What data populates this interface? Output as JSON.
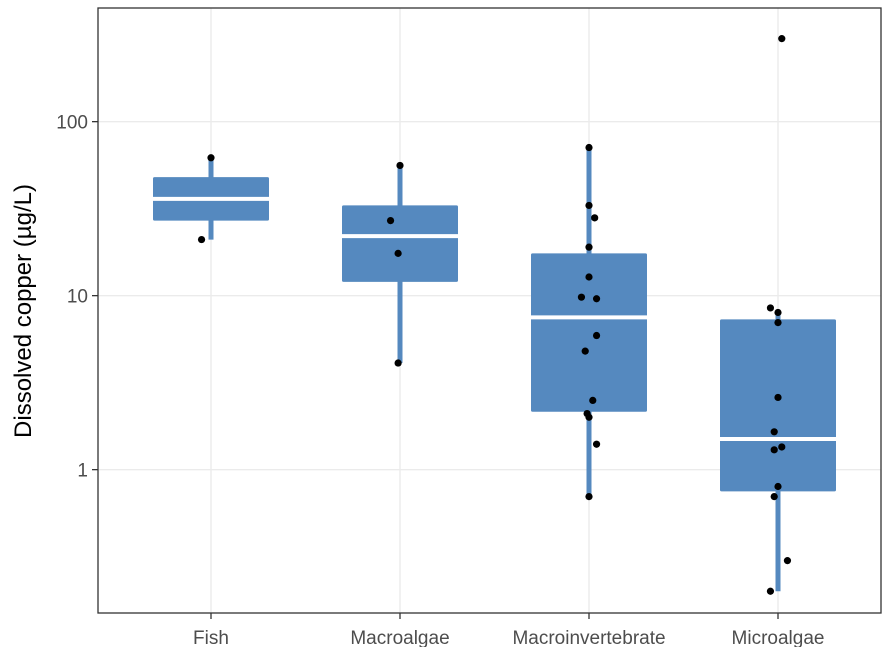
{
  "chart_data": {
    "type": "box",
    "title": "",
    "xlabel": "",
    "ylabel": "Dissolved copper (µg/L)",
    "y_scale": "log10",
    "ylim": [
      0.15,
      450
    ],
    "yticks": [
      {
        "value": 1,
        "label": "1"
      },
      {
        "value": 10,
        "label": "10"
      },
      {
        "value": 100,
        "label": "100"
      }
    ],
    "grid": true,
    "legend": "none",
    "colors": {
      "box": "#5589bf",
      "median": "#ffffff",
      "points": "#000000",
      "grid": "#ebebeb",
      "frame": "#333333"
    },
    "categories": [
      "Fish",
      "Macroalgae",
      "Macroinvertebrate",
      "Microalgae"
    ],
    "boxes": [
      {
        "category": "Fish",
        "whisker_low": 21,
        "q1": 27,
        "median": 36,
        "q3": 48,
        "whisker_high": 62
      },
      {
        "category": "Macroalgae",
        "whisker_low": 4.1,
        "q1": 12,
        "median": 22,
        "q3": 33,
        "whisker_high": 56
      },
      {
        "category": "Macroinvertebrate",
        "whisker_low": 0.7,
        "q1": 2.15,
        "median": 7.5,
        "q3": 17.5,
        "whisker_high": 71
      },
      {
        "category": "Microalgae",
        "whisker_low": 0.2,
        "q1": 0.75,
        "median": 1.5,
        "q3": 7.3,
        "whisker_high": 8.3
      }
    ],
    "points": [
      {
        "category": "Fish",
        "y": 62,
        "jitter": 0.0
      },
      {
        "category": "Fish",
        "y": 21,
        "jitter": -0.05
      },
      {
        "category": "Macroalgae",
        "y": 56,
        "jitter": 0.0
      },
      {
        "category": "Macroalgae",
        "y": 27,
        "jitter": -0.05
      },
      {
        "category": "Macroalgae",
        "y": 17.5,
        "jitter": -0.01
      },
      {
        "category": "Macroalgae",
        "y": 4.1,
        "jitter": -0.01
      },
      {
        "category": "Macroinvertebrate",
        "y": 71,
        "jitter": 0.0
      },
      {
        "category": "Macroinvertebrate",
        "y": 33,
        "jitter": 0.0
      },
      {
        "category": "Macroinvertebrate",
        "y": 28,
        "jitter": 0.03
      },
      {
        "category": "Macroinvertebrate",
        "y": 19,
        "jitter": 0.0
      },
      {
        "category": "Macroinvertebrate",
        "y": 12.8,
        "jitter": 0.0
      },
      {
        "category": "Macroinvertebrate",
        "y": 9.8,
        "jitter": -0.04
      },
      {
        "category": "Macroinvertebrate",
        "y": 9.6,
        "jitter": 0.04
      },
      {
        "category": "Macroinvertebrate",
        "y": 5.9,
        "jitter": 0.04
      },
      {
        "category": "Macroinvertebrate",
        "y": 4.8,
        "jitter": -0.02
      },
      {
        "category": "Macroinvertebrate",
        "y": 2.5,
        "jitter": 0.02
      },
      {
        "category": "Macroinvertebrate",
        "y": 2.1,
        "jitter": -0.01
      },
      {
        "category": "Macroinvertebrate",
        "y": 2.0,
        "jitter": 0.0
      },
      {
        "category": "Macroinvertebrate",
        "y": 1.4,
        "jitter": 0.04
      },
      {
        "category": "Macroinvertebrate",
        "y": 0.7,
        "jitter": 0.0
      },
      {
        "category": "Microalgae",
        "y": 300,
        "jitter": 0.02
      },
      {
        "category": "Microalgae",
        "y": 8.5,
        "jitter": -0.04
      },
      {
        "category": "Microalgae",
        "y": 8.0,
        "jitter": 0.0
      },
      {
        "category": "Microalgae",
        "y": 7.0,
        "jitter": 0.0
      },
      {
        "category": "Microalgae",
        "y": 2.6,
        "jitter": 0.0
      },
      {
        "category": "Microalgae",
        "y": 1.65,
        "jitter": -0.02
      },
      {
        "category": "Microalgae",
        "y": 1.35,
        "jitter": 0.02
      },
      {
        "category": "Microalgae",
        "y": 1.3,
        "jitter": -0.02
      },
      {
        "category": "Microalgae",
        "y": 0.8,
        "jitter": 0.0
      },
      {
        "category": "Microalgae",
        "y": 0.7,
        "jitter": -0.02
      },
      {
        "category": "Microalgae",
        "y": 0.3,
        "jitter": 0.05
      },
      {
        "category": "Microalgae",
        "y": 0.2,
        "jitter": -0.04
      }
    ]
  }
}
